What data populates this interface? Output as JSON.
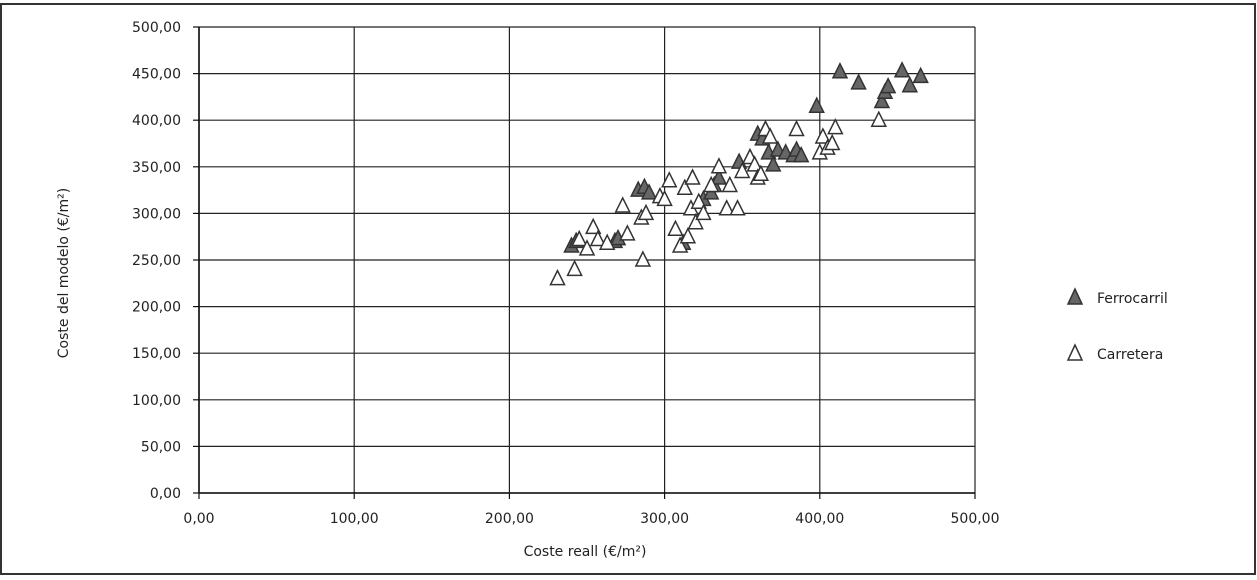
{
  "chart_data": {
    "type": "scatter",
    "title": "",
    "xlabel": "Coste reall (€/m²)",
    "ylabel": "Coste del modelo (€/m²)",
    "xlim": [
      0,
      500
    ],
    "ylim": [
      0,
      500
    ],
    "x_ticks": [
      "0,00",
      "100,00",
      "200,00",
      "300,00",
      "400,00",
      "500,00"
    ],
    "y_ticks": [
      "0,00",
      "50,00",
      "100,00",
      "150,00",
      "200,00",
      "250,00",
      "300,00",
      "350,00",
      "400,00",
      "450,00",
      "500,00"
    ],
    "x_tick_values": [
      0,
      100,
      200,
      300,
      400,
      500
    ],
    "y_tick_values": [
      0,
      50,
      100,
      150,
      200,
      250,
      300,
      350,
      400,
      450,
      500
    ],
    "grid": true,
    "legend_position": "right",
    "series": [
      {
        "name": "Ferrocarril",
        "marker": "filled-triangle",
        "color": "#666666",
        "points": [
          [
            240,
            265
          ],
          [
            243,
            270
          ],
          [
            268,
            270
          ],
          [
            270,
            273
          ],
          [
            283,
            325
          ],
          [
            287,
            328
          ],
          [
            290,
            322
          ],
          [
            312,
            268
          ],
          [
            325,
            315
          ],
          [
            330,
            322
          ],
          [
            332,
            330
          ],
          [
            335,
            338
          ],
          [
            348,
            355
          ],
          [
            360,
            385
          ],
          [
            363,
            380
          ],
          [
            365,
            390
          ],
          [
            367,
            365
          ],
          [
            370,
            352
          ],
          [
            373,
            368
          ],
          [
            378,
            365
          ],
          [
            383,
            362
          ],
          [
            385,
            368
          ],
          [
            388,
            362
          ],
          [
            398,
            415
          ],
          [
            413,
            452
          ],
          [
            425,
            440
          ],
          [
            440,
            420
          ],
          [
            442,
            430
          ],
          [
            444,
            436
          ],
          [
            453,
            453
          ],
          [
            458,
            437
          ],
          [
            465,
            447
          ]
        ]
      },
      {
        "name": "Carretera",
        "marker": "hollow-triangle",
        "color": "#ffffff",
        "points": [
          [
            231,
            230
          ],
          [
            242,
            240
          ],
          [
            245,
            272
          ],
          [
            250,
            262
          ],
          [
            254,
            285
          ],
          [
            257,
            272
          ],
          [
            263,
            268
          ],
          [
            273,
            308
          ],
          [
            276,
            278
          ],
          [
            285,
            295
          ],
          [
            286,
            250
          ],
          [
            288,
            300
          ],
          [
            297,
            318
          ],
          [
            300,
            315
          ],
          [
            303,
            335
          ],
          [
            307,
            283
          ],
          [
            310,
            265
          ],
          [
            313,
            327
          ],
          [
            315,
            275
          ],
          [
            317,
            305
          ],
          [
            318,
            338
          ],
          [
            320,
            290
          ],
          [
            322,
            312
          ],
          [
            325,
            300
          ],
          [
            330,
            330
          ],
          [
            335,
            350
          ],
          [
            340,
            305
          ],
          [
            342,
            330
          ],
          [
            347,
            305
          ],
          [
            350,
            345
          ],
          [
            355,
            360
          ],
          [
            358,
            352
          ],
          [
            360,
            338
          ],
          [
            362,
            342
          ],
          [
            365,
            390
          ],
          [
            368,
            382
          ],
          [
            385,
            390
          ],
          [
            400,
            365
          ],
          [
            402,
            382
          ],
          [
            405,
            370
          ],
          [
            408,
            375
          ],
          [
            410,
            392
          ],
          [
            438,
            400
          ]
        ]
      }
    ]
  }
}
